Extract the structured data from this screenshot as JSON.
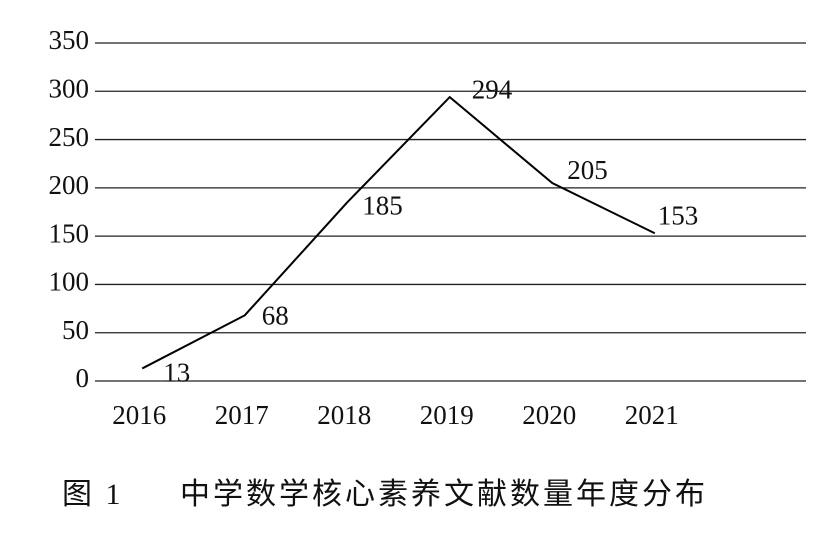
{
  "chart_data": {
    "type": "line",
    "figure_label": "图 1",
    "title": "中学数学核心素养文献数量年度分布",
    "categories": [
      "2016",
      "2017",
      "2018",
      "2019",
      "2020",
      "2021"
    ],
    "values": [
      13,
      68,
      185,
      294,
      205,
      153
    ],
    "color": "#000000",
    "ylim": [
      0,
      350
    ],
    "yticks": [
      0,
      50,
      100,
      150,
      200,
      250,
      300,
      350
    ],
    "grid": true
  }
}
